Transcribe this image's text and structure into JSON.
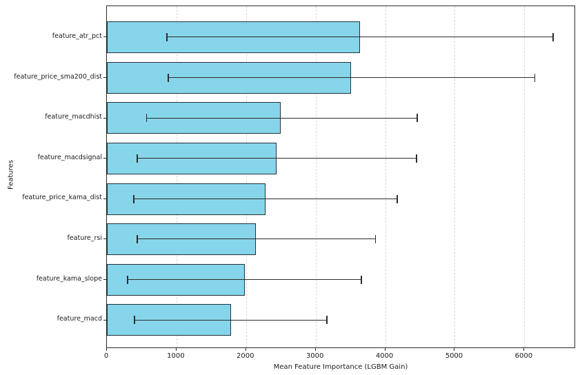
{
  "figure": {
    "background": "#ffffff",
    "bar_fill_color": "#87d5ea",
    "bar_edge_color": "#22313a",
    "error_bar_color": "#2b2b2b",
    "grid_color": "#d8d8d8"
  },
  "chart_data": {
    "type": "bar",
    "orientation": "horizontal",
    "title": "",
    "xlabel": "Mean Feature Importance (LGBM Gain)",
    "ylabel": "Features",
    "xlim": [
      0,
      6740
    ],
    "x_ticks": [
      0,
      1000,
      2000,
      3000,
      4000,
      5000,
      6000
    ],
    "grid": "vertical dashed gridlines at each x tick",
    "legend": "none",
    "categories": [
      "feature_atr_pct",
      "feature_price_sma200_dist",
      "feature_macdhist",
      "feature_macdsignal",
      "feature_price_kama_dist",
      "feature_rsi",
      "feature_kama_slope",
      "feature_macd"
    ],
    "values": [
      3640,
      3510,
      2500,
      2440,
      2280,
      2140,
      1980,
      1780
    ],
    "error_low": [
      860,
      880,
      570,
      440,
      390,
      440,
      300,
      400
    ],
    "error_high": [
      6410,
      6150,
      4460,
      4450,
      4170,
      3860,
      3660,
      3160
    ]
  }
}
